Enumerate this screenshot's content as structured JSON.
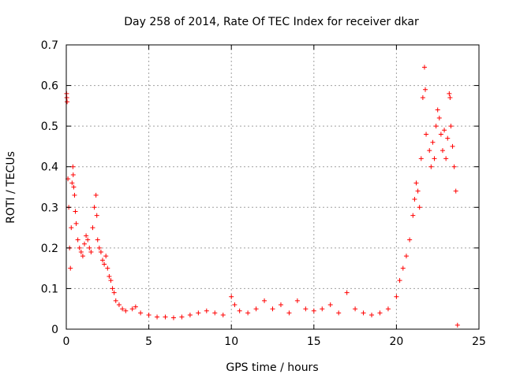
{
  "chart_data": {
    "type": "scatter",
    "title": "Day 258 of 2014, Rate Of TEC Index for receiver dkar",
    "xlabel": "GPS time / hours",
    "ylabel": "ROTI / TECUs",
    "xlim": [
      0,
      25
    ],
    "ylim": [
      0,
      0.7
    ],
    "xticks": [
      0,
      5,
      10,
      15,
      20,
      25
    ],
    "yticks": [
      0,
      0.1,
      0.2,
      0.3,
      0.4,
      0.5,
      0.6,
      0.7
    ],
    "xtick_labels": [
      "0",
      "5",
      "10",
      "15",
      "20",
      "25"
    ],
    "ytick_labels": [
      "0",
      "0.1",
      "0.2",
      "0.3",
      "0.4",
      "0.5",
      "0.6",
      "0.7"
    ],
    "grid": true,
    "marker": "+",
    "marker_color": "#ff0000",
    "series": [
      {
        "name": "ROTI",
        "points": [
          [
            0.02,
            0.58
          ],
          [
            0.03,
            0.57
          ],
          [
            0.05,
            0.56
          ],
          [
            0.1,
            0.37
          ],
          [
            0.15,
            0.3
          ],
          [
            0.2,
            0.2
          ],
          [
            0.25,
            0.15
          ],
          [
            0.3,
            0.25
          ],
          [
            0.35,
            0.36
          ],
          [
            0.4,
            0.4
          ],
          [
            0.42,
            0.38
          ],
          [
            0.45,
            0.35
          ],
          [
            0.5,
            0.33
          ],
          [
            0.55,
            0.29
          ],
          [
            0.6,
            0.26
          ],
          [
            0.7,
            0.22
          ],
          [
            0.8,
            0.2
          ],
          [
            0.9,
            0.19
          ],
          [
            1.0,
            0.18
          ],
          [
            1.1,
            0.21
          ],
          [
            1.2,
            0.23
          ],
          [
            1.3,
            0.22
          ],
          [
            1.4,
            0.2
          ],
          [
            1.5,
            0.19
          ],
          [
            1.6,
            0.25
          ],
          [
            1.7,
            0.3
          ],
          [
            1.8,
            0.33
          ],
          [
            1.85,
            0.28
          ],
          [
            1.9,
            0.22
          ],
          [
            2.0,
            0.2
          ],
          [
            2.1,
            0.19
          ],
          [
            2.2,
            0.17
          ],
          [
            2.3,
            0.16
          ],
          [
            2.4,
            0.18
          ],
          [
            2.5,
            0.15
          ],
          [
            2.6,
            0.13
          ],
          [
            2.7,
            0.12
          ],
          [
            2.8,
            0.1
          ],
          [
            2.9,
            0.09
          ],
          [
            3.0,
            0.07
          ],
          [
            3.2,
            0.06
          ],
          [
            3.4,
            0.05
          ],
          [
            3.6,
            0.045
          ],
          [
            4.0,
            0.05
          ],
          [
            4.2,
            0.055
          ],
          [
            4.5,
            0.04
          ],
          [
            5.0,
            0.035
          ],
          [
            5.5,
            0.03
          ],
          [
            6.0,
            0.03
          ],
          [
            6.5,
            0.028
          ],
          [
            7.0,
            0.03
          ],
          [
            7.5,
            0.035
          ],
          [
            8.0,
            0.04
          ],
          [
            8.5,
            0.045
          ],
          [
            9.0,
            0.04
          ],
          [
            9.5,
            0.035
          ],
          [
            10.0,
            0.08
          ],
          [
            10.2,
            0.06
          ],
          [
            10.5,
            0.045
          ],
          [
            11.0,
            0.04
          ],
          [
            11.5,
            0.05
          ],
          [
            12.0,
            0.07
          ],
          [
            12.5,
            0.05
          ],
          [
            13.0,
            0.06
          ],
          [
            13.5,
            0.04
          ],
          [
            14.0,
            0.07
          ],
          [
            14.5,
            0.05
          ],
          [
            15.0,
            0.045
          ],
          [
            15.5,
            0.05
          ],
          [
            16.0,
            0.06
          ],
          [
            16.5,
            0.04
          ],
          [
            17.0,
            0.09
          ],
          [
            17.5,
            0.05
          ],
          [
            18.0,
            0.04
          ],
          [
            18.5,
            0.035
          ],
          [
            19.0,
            0.04
          ],
          [
            19.5,
            0.05
          ],
          [
            20.0,
            0.08
          ],
          [
            20.2,
            0.12
          ],
          [
            20.4,
            0.15
          ],
          [
            20.6,
            0.18
          ],
          [
            20.8,
            0.22
          ],
          [
            21.0,
            0.28
          ],
          [
            21.1,
            0.32
          ],
          [
            21.2,
            0.36
          ],
          [
            21.3,
            0.34
          ],
          [
            21.4,
            0.3
          ],
          [
            21.5,
            0.42
          ],
          [
            21.6,
            0.57
          ],
          [
            21.7,
            0.645
          ],
          [
            21.75,
            0.59
          ],
          [
            21.8,
            0.48
          ],
          [
            22.0,
            0.44
          ],
          [
            22.1,
            0.4
          ],
          [
            22.2,
            0.46
          ],
          [
            22.3,
            0.42
          ],
          [
            22.4,
            0.5
          ],
          [
            22.5,
            0.54
          ],
          [
            22.6,
            0.52
          ],
          [
            22.7,
            0.48
          ],
          [
            22.8,
            0.44
          ],
          [
            22.9,
            0.49
          ],
          [
            23.0,
            0.42
          ],
          [
            23.1,
            0.47
          ],
          [
            23.2,
            0.58
          ],
          [
            23.25,
            0.57
          ],
          [
            23.3,
            0.5
          ],
          [
            23.4,
            0.45
          ],
          [
            23.5,
            0.4
          ],
          [
            23.6,
            0.34
          ],
          [
            23.7,
            0.01
          ]
        ]
      }
    ]
  }
}
